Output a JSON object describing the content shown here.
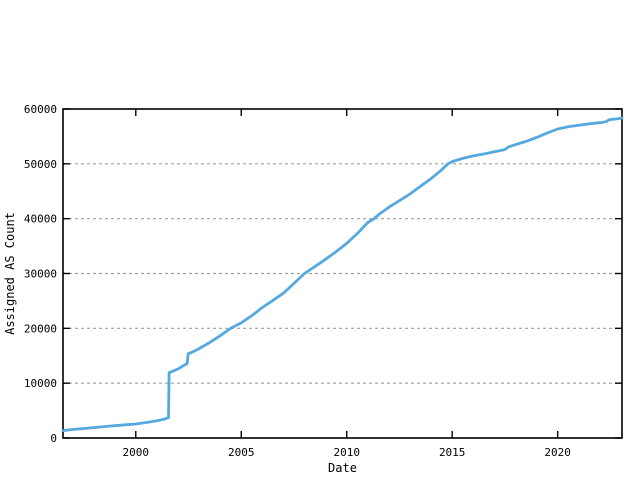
{
  "chart_data": {
    "type": "line",
    "title": "",
    "xlabel": "Date",
    "ylabel": "Assigned AS Count",
    "xlim": [
      1996.55,
      2023.05
    ],
    "ylim": [
      0,
      60000
    ],
    "x_ticks": [
      2000,
      2005,
      2010,
      2015,
      2020
    ],
    "y_ticks": [
      0,
      10000,
      20000,
      30000,
      40000,
      50000,
      60000
    ],
    "grid": "horizontal-dashed",
    "legend": "none",
    "series": [
      {
        "name": "Assigned AS Count",
        "color": "#56a9df",
        "points": [
          [
            1996.55,
            1350
          ],
          [
            1997,
            1550
          ],
          [
            1997.5,
            1720
          ],
          [
            1998,
            1900
          ],
          [
            1998.5,
            2080
          ],
          [
            1999,
            2250
          ],
          [
            1999.5,
            2400
          ],
          [
            2000,
            2560
          ],
          [
            2000.5,
            2820
          ],
          [
            2001,
            3150
          ],
          [
            2001.3,
            3400
          ],
          [
            2001.55,
            3700
          ],
          [
            2001.58,
            11900
          ],
          [
            2001.8,
            12250
          ],
          [
            2002,
            12600
          ],
          [
            2002.2,
            13050
          ],
          [
            2002.44,
            13600
          ],
          [
            2002.48,
            15350
          ],
          [
            2002.75,
            15800
          ],
          [
            2003,
            16300
          ],
          [
            2003.5,
            17400
          ],
          [
            2004,
            18650
          ],
          [
            2004.5,
            20000
          ],
          [
            2005,
            21000
          ],
          [
            2005.5,
            22300
          ],
          [
            2006,
            23800
          ],
          [
            2006.5,
            25100
          ],
          [
            2007,
            26400
          ],
          [
            2007.5,
            28200
          ],
          [
            2008,
            30000
          ],
          [
            2008.5,
            31300
          ],
          [
            2009,
            32600
          ],
          [
            2009.5,
            34000
          ],
          [
            2010,
            35500
          ],
          [
            2010.5,
            37300
          ],
          [
            2011,
            39300
          ],
          [
            2011.3,
            40000
          ],
          [
            2011.5,
            40700
          ],
          [
            2012,
            42100
          ],
          [
            2012.5,
            43300
          ],
          [
            2013,
            44500
          ],
          [
            2013.5,
            45900
          ],
          [
            2014,
            47300
          ],
          [
            2014.5,
            48900
          ],
          [
            2014.8,
            50000
          ],
          [
            2015,
            50400
          ],
          [
            2015.5,
            51000
          ],
          [
            2016,
            51450
          ],
          [
            2016.5,
            51800
          ],
          [
            2017,
            52200
          ],
          [
            2017.5,
            52600
          ],
          [
            2017.65,
            53050
          ],
          [
            2018,
            53500
          ],
          [
            2018.5,
            54100
          ],
          [
            2019,
            54800
          ],
          [
            2019.5,
            55600
          ],
          [
            2020,
            56350
          ],
          [
            2020.5,
            56750
          ],
          [
            2021,
            57050
          ],
          [
            2021.5,
            57300
          ],
          [
            2022,
            57500
          ],
          [
            2022.3,
            57700
          ],
          [
            2022.45,
            58050
          ],
          [
            2022.8,
            58200
          ],
          [
            2023.05,
            58350
          ]
        ]
      }
    ]
  },
  "colors": {
    "background": "#ffffff",
    "axis": "#000000",
    "grid": "#a0a0a0",
    "line": "#56a9df",
    "text": "#000000"
  }
}
